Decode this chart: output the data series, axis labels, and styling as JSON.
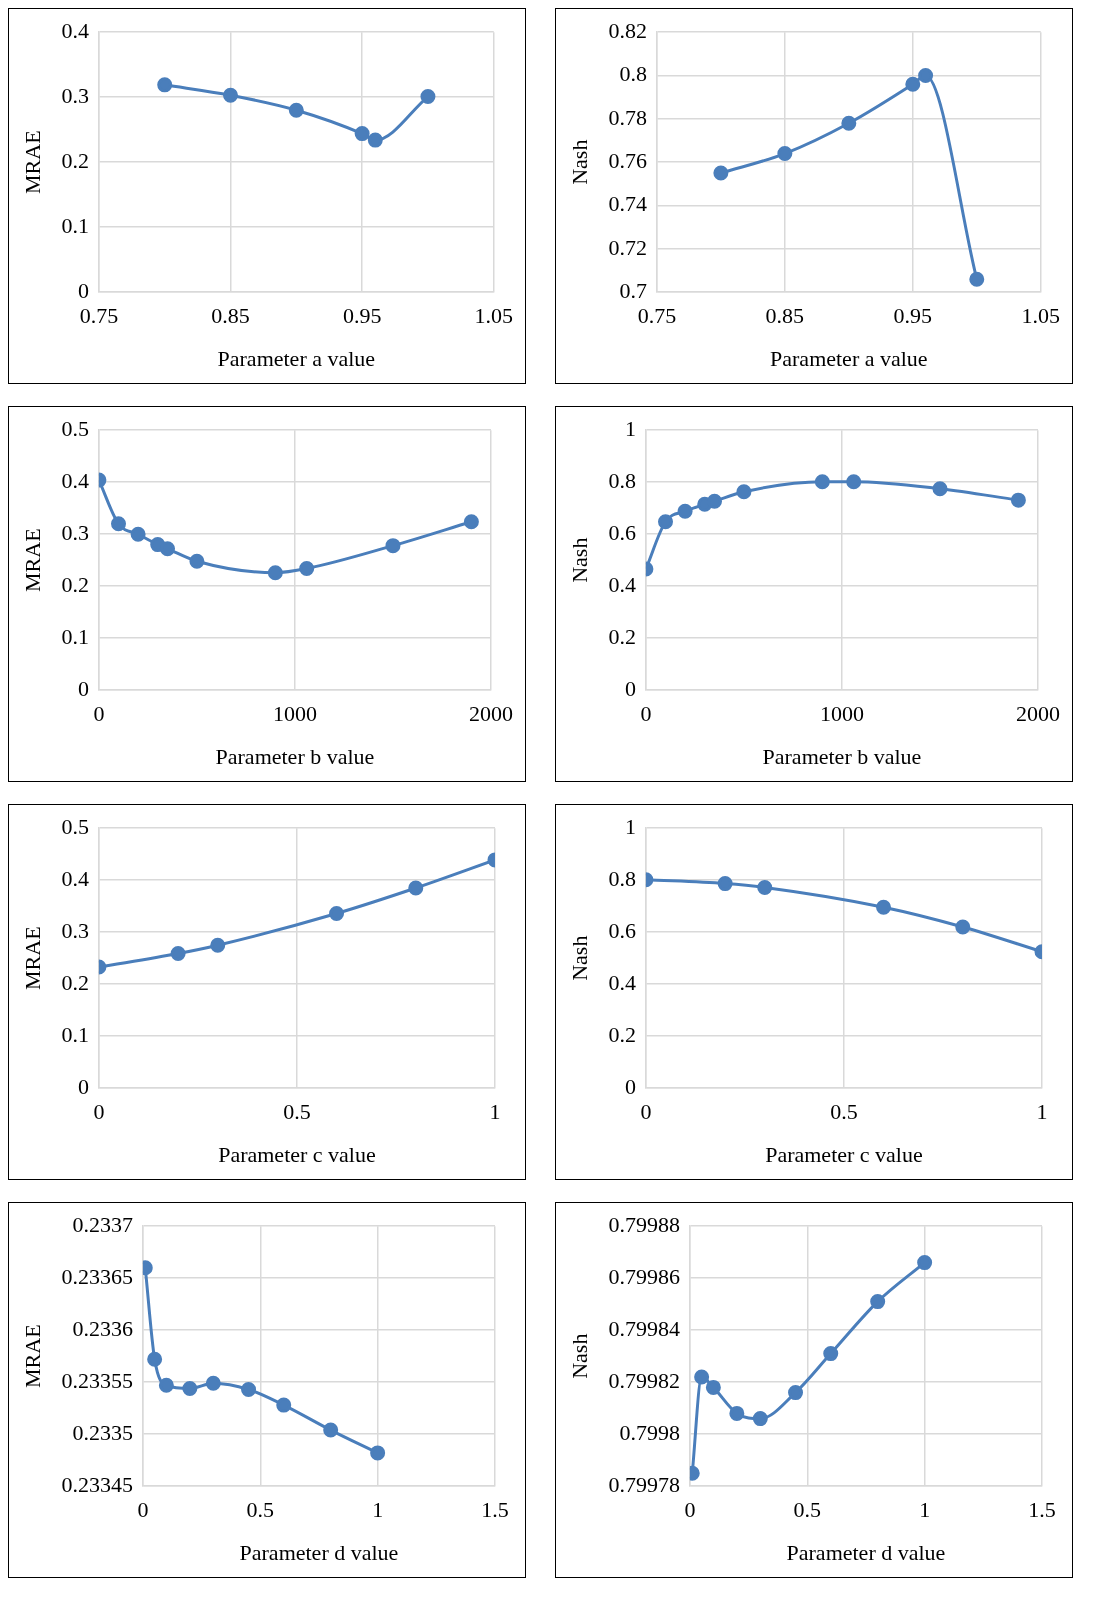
{
  "chart_data": [
    {
      "type": "line",
      "xlabel": "Parameter a value",
      "ylabel": "MRAE",
      "x": [
        0.8,
        0.85,
        0.9,
        0.95,
        0.96,
        1.0
      ],
      "xlim": [
        0.75,
        1.05
      ],
      "xticks": [
        0.75,
        0.85,
        0.95,
        1.05
      ],
      "ylim": [
        0,
        0.4
      ],
      "yticks": [
        0,
        0.1,
        0.2,
        0.3,
        0.4
      ],
      "grid": true,
      "marker": "circle",
      "legend": false,
      "series": [
        {
          "color": "#4a7ebb",
          "values": [
            0.319,
            0.303,
            0.28,
            0.244,
            0.234,
            0.301
          ]
        }
      ]
    },
    {
      "type": "line",
      "xlabel": "Parameter a value",
      "ylabel": "Nash",
      "x": [
        0.8,
        0.85,
        0.9,
        0.95,
        0.96,
        1.0
      ],
      "xlim": [
        0.75,
        1.05
      ],
      "xticks": [
        0.75,
        0.85,
        0.95,
        1.05
      ],
      "ylim": [
        0.7,
        0.82
      ],
      "yticks": [
        0.7,
        0.72,
        0.74,
        0.76,
        0.78,
        0.8,
        0.82
      ],
      "grid": true,
      "marker": "circle",
      "legend": false,
      "series": [
        {
          "color": "#4a7ebb",
          "values": [
            0.755,
            0.764,
            0.778,
            0.796,
            0.8,
            0.706
          ]
        }
      ]
    },
    {
      "type": "line",
      "xlabel": "Parameter b value",
      "ylabel": "MRAE",
      "x": [
        0,
        100,
        200,
        300,
        350,
        500,
        900,
        1060,
        1500,
        1900
      ],
      "xlim": [
        0,
        2000
      ],
      "xticks": [
        0,
        1000,
        2000
      ],
      "ylim": [
        0,
        0.5
      ],
      "yticks": [
        0,
        0.1,
        0.2,
        0.3,
        0.4,
        0.5
      ],
      "grid": true,
      "marker": "circle",
      "legend": false,
      "series": [
        {
          "color": "#4a7ebb",
          "values": [
            0.404,
            0.32,
            0.3,
            0.28,
            0.272,
            0.248,
            0.226,
            0.234,
            0.278,
            0.324
          ]
        }
      ]
    },
    {
      "type": "line",
      "xlabel": "Parameter b value",
      "ylabel": "Nash",
      "x": [
        0,
        100,
        200,
        300,
        350,
        500,
        900,
        1060,
        1500,
        1900
      ],
      "xlim": [
        0,
        2000
      ],
      "xticks": [
        0,
        1000,
        2000
      ],
      "ylim": [
        0,
        1
      ],
      "yticks": [
        0,
        0.2,
        0.4,
        0.6,
        0.8,
        1
      ],
      "grid": true,
      "marker": "circle",
      "legend": false,
      "series": [
        {
          "color": "#4a7ebb",
          "values": [
            0.466,
            0.648,
            0.688,
            0.715,
            0.727,
            0.763,
            0.802,
            0.802,
            0.775,
            0.731
          ]
        }
      ]
    },
    {
      "type": "line",
      "xlabel": "Parameter c value",
      "ylabel": "MRAE",
      "x": [
        0,
        0.2,
        0.3,
        0.6,
        0.8,
        1
      ],
      "xlim": [
        0,
        1
      ],
      "xticks": [
        0,
        0.5,
        1
      ],
      "ylim": [
        0,
        0.5
      ],
      "yticks": [
        0,
        0.1,
        0.2,
        0.3,
        0.4,
        0.5
      ],
      "grid": true,
      "marker": "circle",
      "legend": false,
      "series": [
        {
          "color": "#4a7ebb",
          "values": [
            0.233,
            0.259,
            0.275,
            0.336,
            0.385,
            0.439
          ]
        }
      ]
    },
    {
      "type": "line",
      "xlabel": "Parameter c value",
      "ylabel": "Nash",
      "x": [
        0,
        0.2,
        0.3,
        0.6,
        0.8,
        1
      ],
      "xlim": [
        0,
        1
      ],
      "xticks": [
        0,
        0.5,
        1
      ],
      "ylim": [
        0,
        1
      ],
      "yticks": [
        0,
        0.2,
        0.4,
        0.6,
        0.8,
        1
      ],
      "grid": true,
      "marker": "circle",
      "legend": false,
      "series": [
        {
          "color": "#4a7ebb",
          "values": [
            0.802,
            0.787,
            0.772,
            0.696,
            0.62,
            0.525
          ]
        }
      ]
    },
    {
      "type": "line",
      "xlabel": "Parameter d value",
      "ylabel": "MRAE",
      "x": [
        0.01,
        0.05,
        0.1,
        0.2,
        0.3,
        0.45,
        0.6,
        0.8,
        1
      ],
      "xlim": [
        0,
        1.5
      ],
      "xticks": [
        0,
        0.5,
        1,
        1.5
      ],
      "ylim": [
        0.23345,
        0.2337
      ],
      "yticks": [
        0.23345,
        0.2335,
        0.23355,
        0.2336,
        0.23365,
        0.2337
      ],
      "grid": true,
      "marker": "circle",
      "legend": false,
      "series": [
        {
          "color": "#4a7ebb",
          "values": [
            0.23366,
            0.233572,
            0.233547,
            0.233544,
            0.233549,
            0.233543,
            0.233528,
            0.233504,
            0.233482
          ]
        }
      ]
    },
    {
      "type": "line",
      "xlabel": "Parameter d value",
      "ylabel": "Nash",
      "x": [
        0.01,
        0.05,
        0.1,
        0.2,
        0.3,
        0.45,
        0.6,
        0.8,
        1
      ],
      "xlim": [
        0,
        1.5
      ],
      "xticks": [
        0,
        0.5,
        1,
        1.5
      ],
      "ylim": [
        0.79978,
        0.79988
      ],
      "yticks": [
        0.79978,
        0.7998,
        0.79982,
        0.79984,
        0.79986,
        0.79988
      ],
      "grid": true,
      "marker": "circle",
      "legend": false,
      "series": [
        {
          "color": "#4a7ebb",
          "values": [
            0.799785,
            0.799822,
            0.799818,
            0.799808,
            0.799806,
            0.799816,
            0.799831,
            0.799851,
            0.799866
          ]
        }
      ]
    }
  ]
}
